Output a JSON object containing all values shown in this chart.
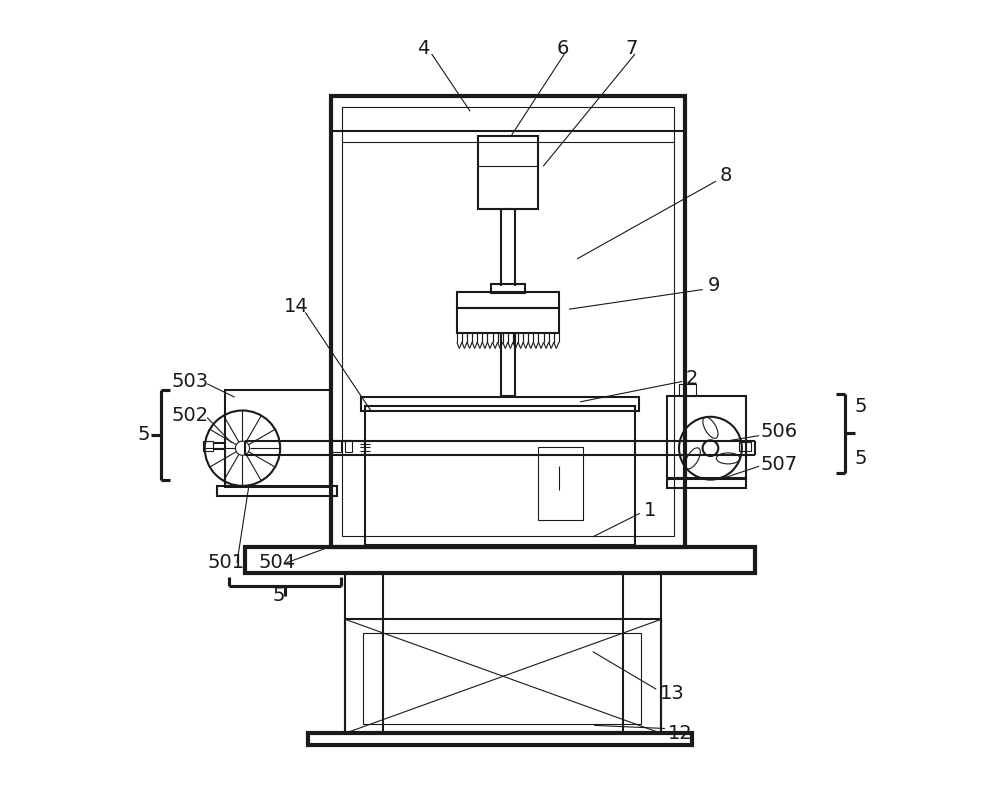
{
  "bg_color": "#ffffff",
  "line_color": "#1a1a1a",
  "line_width": 1.5,
  "thin_line": 0.8,
  "fig_width": 10.0,
  "fig_height": 7.88
}
